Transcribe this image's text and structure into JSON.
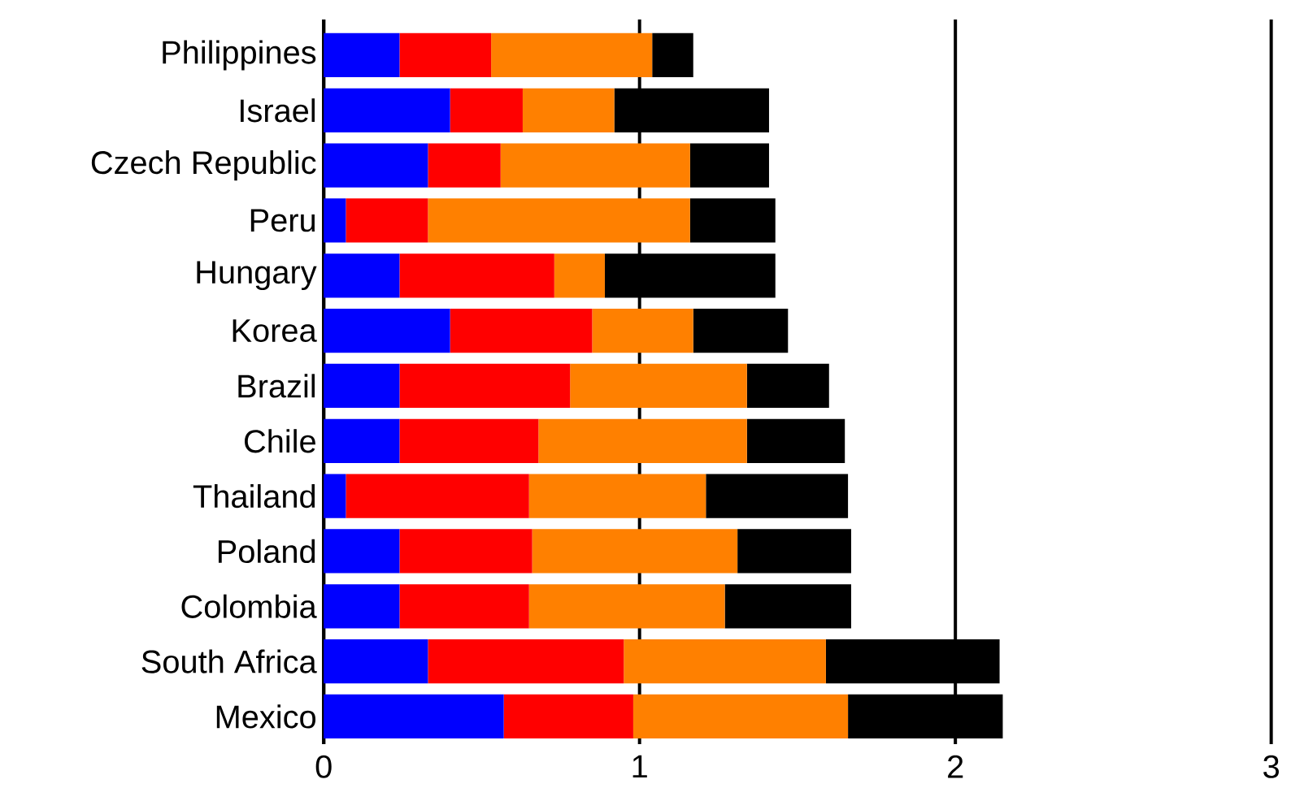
{
  "chart_data": {
    "type": "bar",
    "orientation": "horizontal",
    "stacked": true,
    "grid": "x",
    "categories": [
      "Philippines",
      "Israel",
      "Czech Republic",
      "Peru",
      "Hungary",
      "Korea",
      "Brazil",
      "Chile",
      "Thailand",
      "Poland",
      "Colombia",
      "South Africa",
      "Mexico"
    ],
    "series": [
      {
        "color": "#0000ff",
        "values": [
          0.24,
          0.4,
          0.33,
          0.07,
          0.24,
          0.4,
          0.24,
          0.24,
          0.07,
          0.24,
          0.24,
          0.33,
          0.57
        ]
      },
      {
        "color": "#ff0000",
        "values": [
          0.29,
          0.23,
          0.23,
          0.26,
          0.49,
          0.45,
          0.54,
          0.44,
          0.58,
          0.42,
          0.41,
          0.62,
          0.41
        ]
      },
      {
        "color": "#ff8000",
        "values": [
          0.51,
          0.29,
          0.6,
          0.83,
          0.16,
          0.32,
          0.56,
          0.66,
          0.56,
          0.65,
          0.62,
          0.64,
          0.68
        ]
      },
      {
        "color": "#000000",
        "values": [
          0.13,
          0.49,
          0.25,
          0.27,
          0.54,
          0.3,
          0.26,
          0.31,
          0.45,
          0.36,
          0.4,
          0.55,
          0.49
        ]
      }
    ],
    "xlim": [
      0,
      3
    ],
    "xticks": [
      0,
      1,
      2,
      3
    ]
  }
}
